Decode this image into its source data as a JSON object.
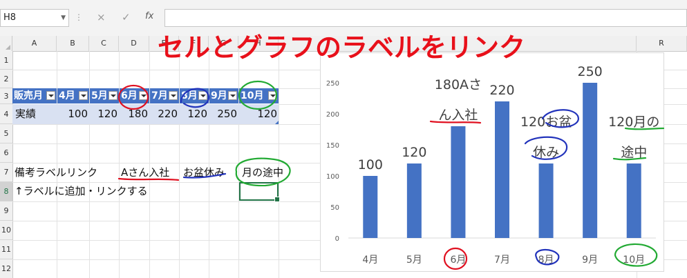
{
  "formula_bar": {
    "name_box": "H8",
    "cancel_icon": "×",
    "enter_icon": "✓",
    "fx_icon": "fx",
    "formula_value": ""
  },
  "columns": [
    "A",
    "B",
    "C",
    "D",
    "E",
    "F",
    "G",
    "H",
    "R"
  ],
  "rows": [
    "1",
    "2",
    "3",
    "4",
    "5",
    "6",
    "7",
    "8",
    "9",
    "10",
    "11",
    "12"
  ],
  "title": "セルとグラフのラベルをリンク",
  "table": {
    "headers": [
      "販売月",
      "4月",
      "5月",
      "6月",
      "7月",
      "8月",
      "9月",
      "10月"
    ],
    "row_label": "実績",
    "values": [
      "100",
      "120",
      "180",
      "220",
      "120",
      "250",
      "120"
    ]
  },
  "notes": {
    "label": "備考ラベルリンク",
    "cells": [
      "Aさん入社",
      "お盆休み",
      "月の途中"
    ],
    "instruction": "↑ラベルに追加・リンクする"
  },
  "chart_data": {
    "type": "bar",
    "categories": [
      "4月",
      "5月",
      "6月",
      "7月",
      "8月",
      "9月",
      "10月"
    ],
    "values": [
      100,
      120,
      180,
      220,
      120,
      250,
      120
    ],
    "data_labels": [
      "100",
      "120",
      "180Aさん入社",
      "220",
      "120お盆休み",
      "250",
      "120月の途中"
    ],
    "data_label_lines": [
      [
        "100"
      ],
      [
        "120"
      ],
      [
        "180Aさ",
        "ん入社"
      ],
      [
        "220"
      ],
      [
        "120お盆",
        "休み"
      ],
      [
        "250"
      ],
      [
        "120月の",
        "途中"
      ]
    ],
    "y_ticks": [
      "0",
      "50",
      "100",
      "150",
      "200",
      "250"
    ],
    "ylim": [
      0,
      280
    ],
    "bar_color": "#4472c4",
    "grid": false
  },
  "colors": {
    "accent_red": "#e8101a",
    "table_header": "#4472c4",
    "table_row": "#d9e1f2",
    "annot_red": "#e01020",
    "annot_blue": "#2233bb",
    "annot_green": "#22aa33"
  }
}
